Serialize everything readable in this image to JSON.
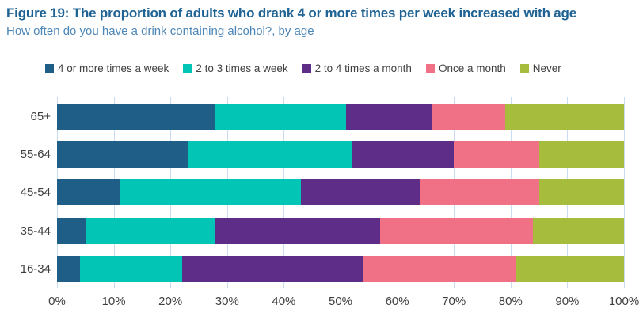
{
  "header": {
    "title": "Figure 19: The proportion of adults who drank 4 or more times per week increased with age",
    "subtitle": "How often do you have a drink containing alcohol?, by age"
  },
  "colors": {
    "title_text": "#1f6395",
    "subtitle_text": "#4d87b8",
    "axis_text": "#3f3f3f",
    "gridline": "#c9dcf2",
    "background": "#ffffff"
  },
  "chart_data": {
    "type": "bar",
    "orientation": "horizontal",
    "stacked": true,
    "title": "Figure 19: The proportion of adults who drank 4 or more times per week increased with age",
    "subtitle": "How often do you have a drink containing alcohol?, by age",
    "categories": [
      "65+",
      "55-64",
      "45-54",
      "35-44",
      "16-34"
    ],
    "series": [
      {
        "name": "4 or more times a week",
        "color": "#1f5f87",
        "values": [
          28,
          23,
          11,
          5,
          4
        ]
      },
      {
        "name": "2 to 3 times a week",
        "color": "#02c5b5",
        "values": [
          23,
          29,
          32,
          23,
          18
        ]
      },
      {
        "name": "2 to 4 times a month",
        "color": "#5e2d87",
        "values": [
          15,
          18,
          21,
          29,
          32
        ]
      },
      {
        "name": "Once a month",
        "color": "#f07085",
        "values": [
          13,
          15,
          21,
          27,
          27
        ]
      },
      {
        "name": "Never",
        "color": "#a6bc3d",
        "values": [
          21,
          15,
          15,
          16,
          19
        ]
      }
    ],
    "x_ticks": [
      "0%",
      "10%",
      "20%",
      "30%",
      "40%",
      "50%",
      "60%",
      "70%",
      "80%",
      "90%",
      "100%"
    ],
    "xlim": [
      0,
      100
    ],
    "unit": "%",
    "legend_position": "top",
    "grid": "vertical"
  }
}
